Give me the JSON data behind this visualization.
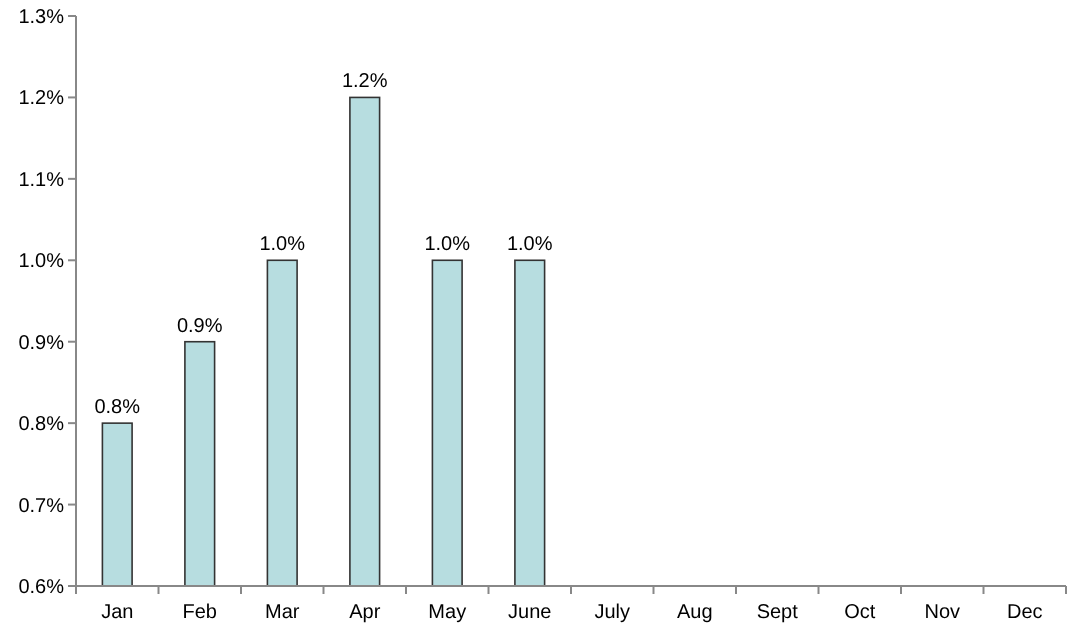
{
  "chart_data": {
    "type": "bar",
    "categories": [
      "Jan",
      "Feb",
      "Mar",
      "Apr",
      "May",
      "June",
      "July",
      "Aug",
      "Sept",
      "Oct",
      "Nov",
      "Dec"
    ],
    "values": [
      0.8,
      0.9,
      1.0,
      1.2,
      1.0,
      1.0,
      null,
      null,
      null,
      null,
      null,
      null
    ],
    "value_labels": [
      "0.8%",
      "0.9%",
      "1.0%",
      "1.2%",
      "1.0%",
      "1.0%",
      null,
      null,
      null,
      null,
      null,
      null
    ],
    "color": "#b7dde0",
    "ylim": [
      0.6,
      1.3
    ],
    "yticks": [
      {
        "value": 0.6,
        "label": "0.6%"
      },
      {
        "value": 0.7,
        "label": "0.7%"
      },
      {
        "value": 0.8,
        "label": "0.8%"
      },
      {
        "value": 0.9,
        "label": "0.9%"
      },
      {
        "value": 1.0,
        "label": "1.0%"
      },
      {
        "value": 1.1,
        "label": "1.1%"
      },
      {
        "value": 1.2,
        "label": "1.2%"
      },
      {
        "value": 1.3,
        "label": "1.3%"
      }
    ],
    "grid": false
  }
}
